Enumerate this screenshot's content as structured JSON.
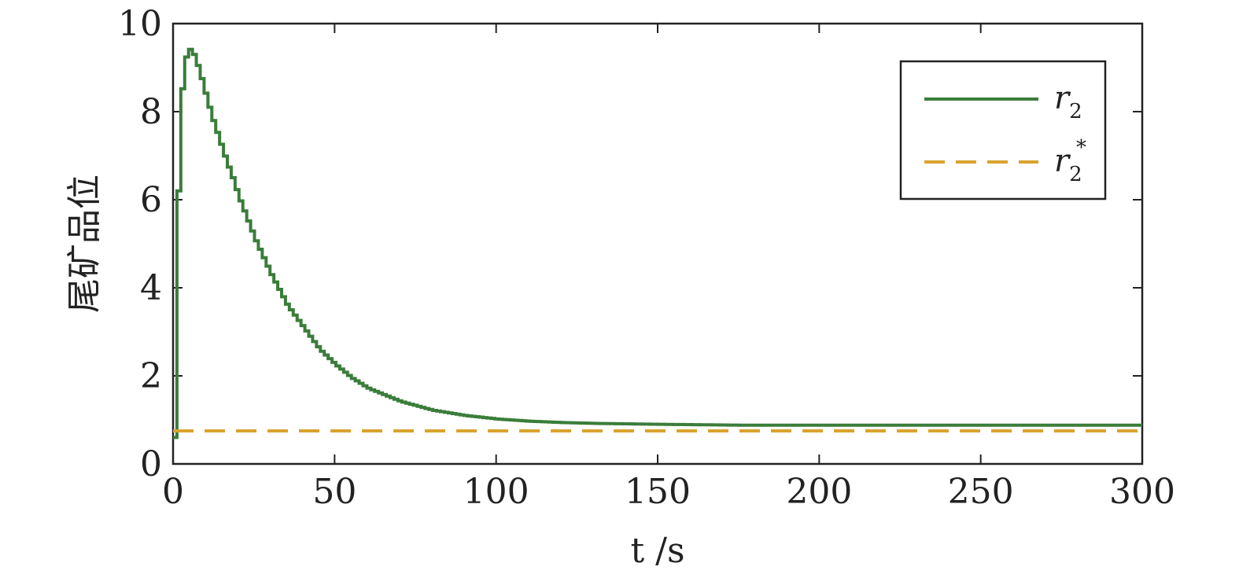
{
  "chart_data": {
    "type": "line",
    "title": "",
    "xlabel": "t /s",
    "ylabel": "尾矿品位",
    "xlim": [
      0,
      300
    ],
    "ylim": [
      0,
      10
    ],
    "x_ticks": [
      "0",
      "50",
      "100",
      "150",
      "200",
      "250",
      "300"
    ],
    "y_ticks": [
      "0",
      "2",
      "4",
      "6",
      "8",
      "10"
    ],
    "grid": false,
    "legend_position": "top-right",
    "colors": {
      "r2": "#3a7d3a",
      "r2_star": "#d9a32e"
    },
    "series": [
      {
        "name": "r2",
        "legend_base": "r",
        "legend_sub": "2",
        "style": "solid-step",
        "x": [
          0,
          1,
          2,
          3,
          4,
          5,
          6,
          7,
          8,
          9,
          10,
          12,
          14,
          16,
          18,
          20,
          25,
          30,
          35,
          40,
          45,
          50,
          55,
          60,
          70,
          80,
          90,
          100,
          110,
          120,
          130,
          150,
          175,
          200,
          250,
          300
        ],
        "y": [
          0.6,
          5.7,
          8.2,
          9.0,
          9.4,
          9.42,
          9.3,
          9.1,
          8.85,
          8.6,
          8.3,
          7.8,
          7.35,
          6.9,
          6.5,
          6.05,
          5.1,
          4.3,
          3.6,
          3.1,
          2.6,
          2.25,
          1.95,
          1.72,
          1.42,
          1.22,
          1.1,
          1.02,
          0.97,
          0.94,
          0.92,
          0.9,
          0.88,
          0.88,
          0.88,
          0.88
        ]
      },
      {
        "name": "r2*",
        "legend_base": "r",
        "legend_sub": "2",
        "legend_sup": "*",
        "style": "dashed",
        "x": [
          0,
          300
        ],
        "y": [
          0.75,
          0.75
        ]
      }
    ]
  }
}
